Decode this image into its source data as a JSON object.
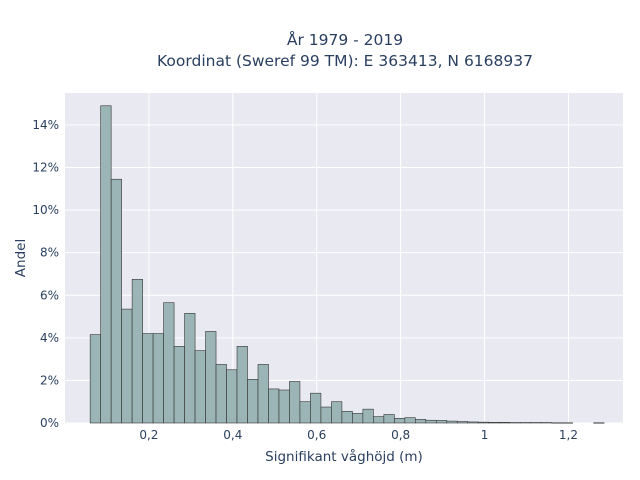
{
  "chart_data": {
    "type": "bar",
    "subtype": "histogram",
    "title_line1": "År 1979 - 2019",
    "title_line2": "Koordinat (Sweref 99 TM): E 363413, N 6168937",
    "xlabel": "Signifikant våghöjd (m)",
    "ylabel": "Andel",
    "xlim": [
      0.0,
      1.33
    ],
    "ylim": [
      0,
      15.5
    ],
    "x_ticks": [
      {
        "value": 0.2,
        "label": "0,2"
      },
      {
        "value": 0.4,
        "label": "0,4"
      },
      {
        "value": 0.6,
        "label": "0,6"
      },
      {
        "value": 0.8,
        "label": "0,8"
      },
      {
        "value": 1.0,
        "label": "1"
      },
      {
        "value": 1.2,
        "label": "1,2"
      }
    ],
    "y_ticks": [
      {
        "value": 0,
        "label": "0%"
      },
      {
        "value": 2,
        "label": "2%"
      },
      {
        "value": 4,
        "label": "4%"
      },
      {
        "value": 6,
        "label": "6%"
      },
      {
        "value": 8,
        "label": "8%"
      },
      {
        "value": 10,
        "label": "10%"
      },
      {
        "value": 12,
        "label": "12%"
      },
      {
        "value": 14,
        "label": "14%"
      }
    ],
    "bin_start": 0.06,
    "bin_width": 0.025,
    "values": [
      4.15,
      14.9,
      11.45,
      5.35,
      6.75,
      4.2,
      4.2,
      5.65,
      3.6,
      5.15,
      3.4,
      4.3,
      2.75,
      2.5,
      3.6,
      2.05,
      2.75,
      1.6,
      1.55,
      1.95,
      1.0,
      1.4,
      0.75,
      1.0,
      0.55,
      0.45,
      0.65,
      0.3,
      0.4,
      0.22,
      0.25,
      0.17,
      0.13,
      0.12,
      0.09,
      0.07,
      0.05,
      0.04,
      0.03,
      0.03,
      0.02,
      0.02,
      0.02,
      0.02,
      0.01,
      0.01,
      0,
      0,
      0.01
    ],
    "grid": true,
    "legend": "none",
    "colors": {
      "bar_fill": "#9bb5b6",
      "bar_stroke": "#333333",
      "plot_bg": "#e9e9f1",
      "grid": "#ffffff",
      "text": "#2a3f5f"
    }
  }
}
